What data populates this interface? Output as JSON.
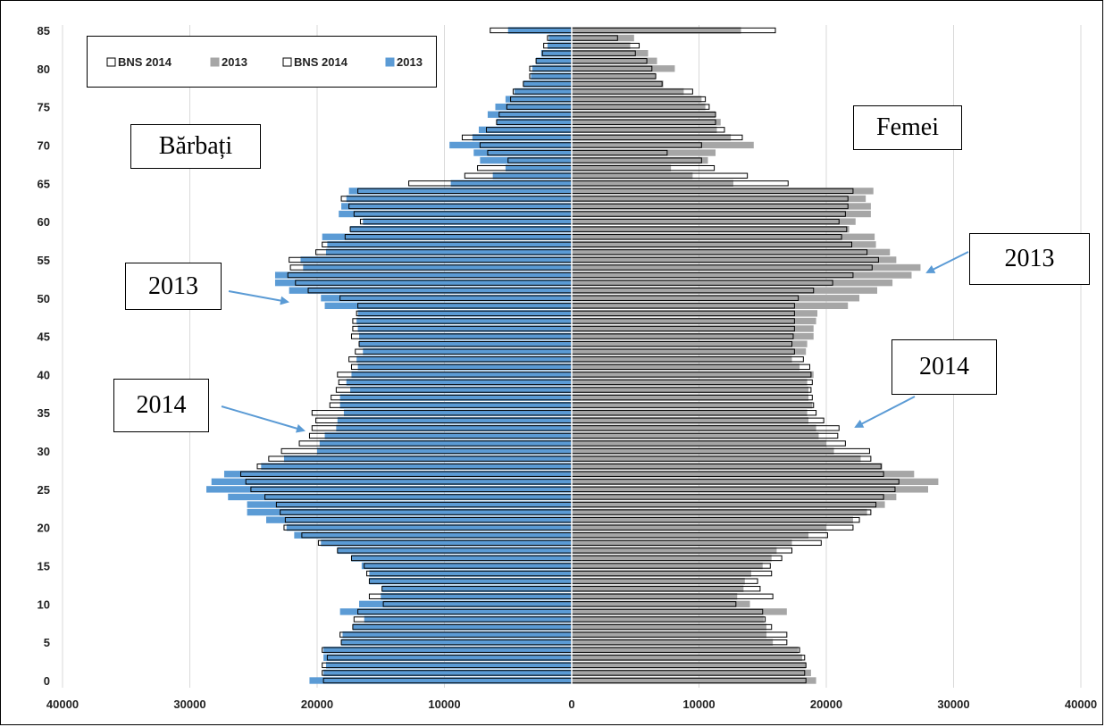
{
  "chart_data": {
    "type": "bar",
    "orientation": "horizontal-population-pyramid",
    "x_ticks": [
      "40000",
      "30000",
      "20000",
      "10000",
      "0",
      "10000",
      "20000",
      "30000",
      "40000"
    ],
    "y_ticks": [
      "0",
      "5",
      "10",
      "15",
      "20",
      "25",
      "30",
      "35",
      "40",
      "45",
      "50",
      "55",
      "60",
      "65",
      "70",
      "75",
      "80",
      "85"
    ],
    "xlim": [
      -40000,
      40000
    ],
    "ylim": [
      0,
      85
    ],
    "grid": "vertical",
    "legend_position": "top-left",
    "legend": [
      {
        "label": "BNS 2014",
        "color": "#ffffff"
      },
      {
        "label": "2013",
        "color": "#a6a6a6"
      },
      {
        "label": "BNS 2014",
        "color": "#ffffff"
      },
      {
        "label": "2013",
        "color": "#5b9bd5"
      }
    ],
    "colors": {
      "men_2013": "#5b9bd5",
      "women_2013": "#a6a6a6",
      "bns_2014": "#ffffff",
      "outline": "#000000",
      "grid": "#d9d9d9",
      "arrow": "#5b9bd5"
    },
    "annotations": {
      "men_label": "Bărbați",
      "women_label": "Femei",
      "left_2013": "2013",
      "left_2014": "2014",
      "right_2013": "2013",
      "right_2014": "2014"
    },
    "ages": [
      0,
      1,
      2,
      3,
      4,
      5,
      6,
      7,
      8,
      9,
      10,
      11,
      12,
      13,
      14,
      15,
      16,
      17,
      18,
      19,
      20,
      21,
      22,
      23,
      24,
      25,
      26,
      27,
      28,
      29,
      30,
      31,
      32,
      33,
      34,
      35,
      36,
      37,
      38,
      39,
      40,
      41,
      42,
      43,
      44,
      45,
      46,
      47,
      48,
      49,
      50,
      51,
      52,
      53,
      54,
      55,
      56,
      57,
      58,
      59,
      60,
      61,
      62,
      63,
      64,
      65,
      66,
      67,
      68,
      69,
      70,
      71,
      72,
      73,
      74,
      75,
      76,
      77,
      78,
      79,
      80,
      81,
      82,
      83,
      84,
      85
    ],
    "series": [
      {
        "name": "2013",
        "side": "men",
        "values": [
          20600,
          19500,
          19300,
          19500,
          19500,
          18100,
          18000,
          17200,
          16300,
          18200,
          16700,
          15000,
          14900,
          15900,
          15900,
          16500,
          17300,
          18400,
          19700,
          21800,
          22400,
          24000,
          25500,
          25500,
          27000,
          28700,
          28300,
          27300,
          24400,
          22600,
          20000,
          19800,
          19400,
          18500,
          18400,
          17900,
          18200,
          18200,
          17400,
          17700,
          17300,
          16800,
          16900,
          16400,
          16700,
          16700,
          16800,
          16900,
          16800,
          19400,
          19700,
          22200,
          23300,
          23300,
          21100,
          21300,
          19300,
          19200,
          19600,
          17400,
          16400,
          18300,
          18100,
          17700,
          17500,
          9500,
          6200,
          5200,
          7200,
          7700,
          9600,
          7800,
          7300,
          5900,
          6600,
          6000,
          5200,
          4500,
          3800,
          3200,
          3100,
          2800,
          2400,
          1900,
          1800,
          5000
        ]
      },
      {
        "name": "2013",
        "side": "women",
        "values": [
          19200,
          18800,
          18400,
          18100,
          17800,
          15800,
          15300,
          15300,
          15100,
          16900,
          14000,
          13000,
          13500,
          13600,
          14100,
          15000,
          15700,
          16100,
          17300,
          18600,
          20000,
          22100,
          23200,
          24600,
          25500,
          28000,
          28800,
          26900,
          24400,
          22700,
          20600,
          20000,
          19400,
          19200,
          18600,
          18500,
          18900,
          18600,
          18600,
          18500,
          19000,
          17900,
          17300,
          18400,
          18500,
          19000,
          19000,
          19200,
          19300,
          21700,
          22600,
          24000,
          25200,
          26700,
          27400,
          25500,
          25000,
          23900,
          23800,
          21800,
          22300,
          23500,
          23500,
          23100,
          23700,
          12700,
          9500,
          7800,
          10700,
          11300,
          14300,
          12500,
          11400,
          11700,
          11300,
          10500,
          10200,
          8800,
          7200,
          6600,
          8100,
          6700,
          6000,
          4600,
          4900,
          13300
        ]
      },
      {
        "name": "BNS 2014",
        "side": "men",
        "values": [
          19500,
          19600,
          19600,
          19200,
          19600,
          18100,
          18200,
          17200,
          17100,
          16800,
          14800,
          15900,
          14900,
          15900,
          16100,
          16300,
          17300,
          18400,
          19900,
          21200,
          22600,
          22500,
          22900,
          23200,
          24100,
          25200,
          25600,
          26000,
          24700,
          23800,
          22800,
          21400,
          20600,
          20400,
          20100,
          20400,
          19000,
          18900,
          18500,
          18300,
          18400,
          17300,
          17500,
          17000,
          16700,
          17300,
          17200,
          17200,
          16900,
          16800,
          18200,
          20700,
          21700,
          22300,
          22100,
          22200,
          20100,
          19600,
          17800,
          17400,
          16600,
          17100,
          17500,
          18100,
          16800,
          12800,
          8400,
          7400,
          5000,
          6600,
          7200,
          8600,
          6700,
          5900,
          5700,
          5100,
          4800,
          4600,
          3800,
          3300,
          3300,
          2800,
          2300,
          2200,
          1900,
          6400
        ]
      },
      {
        "name": "BNS 2014",
        "side": "women",
        "values": [
          18400,
          18300,
          18400,
          18300,
          17900,
          16900,
          16900,
          15700,
          15200,
          15000,
          12900,
          15800,
          14800,
          14600,
          15700,
          15600,
          16500,
          17300,
          19600,
          20100,
          22100,
          22600,
          23500,
          23900,
          24500,
          25400,
          25700,
          24500,
          24300,
          23500,
          23400,
          21500,
          20900,
          21000,
          19800,
          19200,
          19000,
          18900,
          18800,
          18900,
          18800,
          18700,
          18200,
          17500,
          17300,
          17400,
          17500,
          17500,
          17500,
          17500,
          17800,
          19000,
          20500,
          22100,
          23600,
          24100,
          23200,
          22000,
          21200,
          21600,
          21000,
          21500,
          21700,
          21700,
          22100,
          17000,
          13800,
          11200,
          10200,
          7500,
          10200,
          13400,
          12000,
          11300,
          11300,
          10800,
          10500,
          9500,
          7100,
          6600,
          6300,
          5900,
          5000,
          5300,
          3600,
          16000
        ]
      }
    ]
  }
}
